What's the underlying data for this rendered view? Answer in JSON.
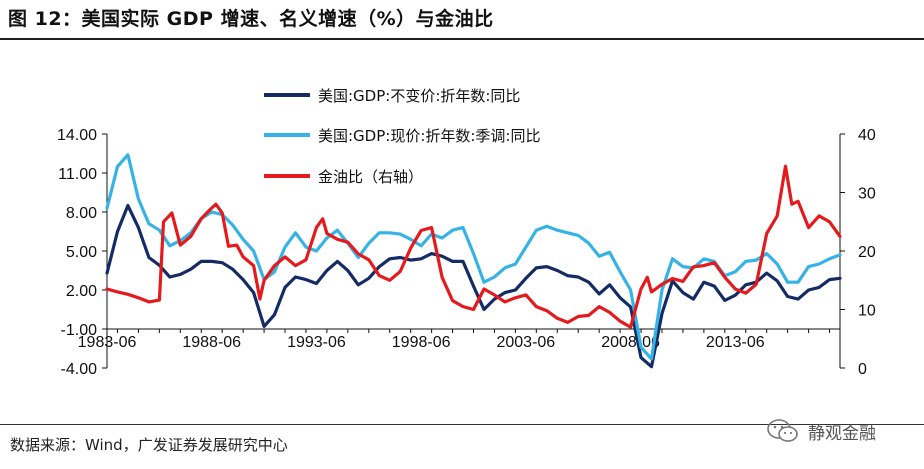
{
  "title": "图 12：美国实际 GDP 增速、名义增速（%）与金油比",
  "source": "数据来源：Wind，广发证券发展研究中心",
  "watermark": "静观金融",
  "chart_data": {
    "type": "line",
    "x_range": [
      "1983-06",
      "2018-06"
    ],
    "x_tick_labels": [
      "1983-06",
      "1988-06",
      "1993-06",
      "1998-06",
      "2003-06",
      "2008-06",
      "2013-06"
    ],
    "y_left": {
      "range": [
        -4,
        14
      ],
      "ticks": [
        "14.00",
        "11.00",
        "8.00",
        "5.00",
        "2.00",
        "-1.00",
        "-4.00"
      ]
    },
    "y_right": {
      "range": [
        0,
        40
      ],
      "ticks": [
        "40",
        "30",
        "20",
        "10",
        "0"
      ]
    },
    "legend_placement": "top-center",
    "grid": false,
    "series": [
      {
        "name": "美国:GDP:不变价:折年数:同比",
        "color": "#142b66",
        "axis": "left",
        "points": [
          [
            1983.5,
            3.3
          ],
          [
            1984.0,
            6.5
          ],
          [
            1984.5,
            8.5
          ],
          [
            1985.0,
            6.8
          ],
          [
            1985.5,
            4.5
          ],
          [
            1986.0,
            3.9
          ],
          [
            1986.5,
            3.0
          ],
          [
            1987.0,
            3.2
          ],
          [
            1987.5,
            3.6
          ],
          [
            1988.0,
            4.2
          ],
          [
            1988.5,
            4.2
          ],
          [
            1989.0,
            4.1
          ],
          [
            1989.5,
            3.6
          ],
          [
            1990.0,
            2.8
          ],
          [
            1990.5,
            1.8
          ],
          [
            1991.0,
            -0.8
          ],
          [
            1991.5,
            0.1
          ],
          [
            1992.0,
            2.2
          ],
          [
            1992.5,
            3.0
          ],
          [
            1993.0,
            2.8
          ],
          [
            1993.5,
            2.5
          ],
          [
            1994.0,
            3.5
          ],
          [
            1994.5,
            4.2
          ],
          [
            1995.0,
            3.5
          ],
          [
            1995.5,
            2.4
          ],
          [
            1996.0,
            2.9
          ],
          [
            1996.5,
            3.8
          ],
          [
            1997.0,
            4.4
          ],
          [
            1997.5,
            4.5
          ],
          [
            1998.0,
            4.3
          ],
          [
            1998.5,
            4.4
          ],
          [
            1999.0,
            4.8
          ],
          [
            1999.5,
            4.6
          ],
          [
            2000.0,
            4.2
          ],
          [
            2000.5,
            4.2
          ],
          [
            2001.0,
            2.3
          ],
          [
            2001.5,
            0.5
          ],
          [
            2002.0,
            1.3
          ],
          [
            2002.5,
            1.8
          ],
          [
            2003.0,
            2.0
          ],
          [
            2003.5,
            2.9
          ],
          [
            2004.0,
            3.7
          ],
          [
            2004.5,
            3.8
          ],
          [
            2005.0,
            3.5
          ],
          [
            2005.5,
            3.1
          ],
          [
            2006.0,
            3.0
          ],
          [
            2006.5,
            2.6
          ],
          [
            2007.0,
            1.7
          ],
          [
            2007.5,
            2.4
          ],
          [
            2008.0,
            1.4
          ],
          [
            2008.5,
            0.7
          ],
          [
            2009.0,
            -3.2
          ],
          [
            2009.5,
            -3.9
          ],
          [
            2010.0,
            0.2
          ],
          [
            2010.5,
            2.7
          ],
          [
            2011.0,
            1.8
          ],
          [
            2011.5,
            1.3
          ],
          [
            2012.0,
            2.6
          ],
          [
            2012.5,
            2.3
          ],
          [
            2013.0,
            1.2
          ],
          [
            2013.5,
            1.6
          ],
          [
            2014.0,
            2.4
          ],
          [
            2014.5,
            2.6
          ],
          [
            2015.0,
            3.3
          ],
          [
            2015.5,
            2.7
          ],
          [
            2016.0,
            1.5
          ],
          [
            2016.5,
            1.3
          ],
          [
            2017.0,
            2.0
          ],
          [
            2017.5,
            2.2
          ],
          [
            2018.0,
            2.8
          ],
          [
            2018.5,
            2.9
          ]
        ]
      },
      {
        "name": "美国:GDP:现价:折年数:季调:同比",
        "color": "#36b3e6",
        "axis": "left",
        "points": [
          [
            1983.5,
            8.3
          ],
          [
            1984.0,
            11.5
          ],
          [
            1984.5,
            12.4
          ],
          [
            1985.0,
            9.0
          ],
          [
            1985.5,
            7.1
          ],
          [
            1986.0,
            6.6
          ],
          [
            1986.5,
            5.4
          ],
          [
            1987.0,
            5.8
          ],
          [
            1987.5,
            6.4
          ],
          [
            1988.0,
            7.5
          ],
          [
            1988.5,
            8.0
          ],
          [
            1989.0,
            7.8
          ],
          [
            1989.5,
            7.0
          ],
          [
            1990.0,
            5.9
          ],
          [
            1990.5,
            5.0
          ],
          [
            1991.0,
            2.8
          ],
          [
            1991.5,
            3.4
          ],
          [
            1992.0,
            5.3
          ],
          [
            1992.5,
            6.4
          ],
          [
            1993.0,
            5.3
          ],
          [
            1993.5,
            5.0
          ],
          [
            1994.0,
            6.0
          ],
          [
            1994.5,
            6.6
          ],
          [
            1995.0,
            5.6
          ],
          [
            1995.5,
            4.5
          ],
          [
            1996.0,
            5.6
          ],
          [
            1996.5,
            6.4
          ],
          [
            1997.0,
            6.4
          ],
          [
            1997.5,
            6.3
          ],
          [
            1998.0,
            5.9
          ],
          [
            1998.5,
            5.4
          ],
          [
            1999.0,
            6.3
          ],
          [
            1999.5,
            6.0
          ],
          [
            2000.0,
            6.6
          ],
          [
            2000.5,
            6.8
          ],
          [
            2001.0,
            4.8
          ],
          [
            2001.5,
            2.6
          ],
          [
            2002.0,
            3.0
          ],
          [
            2002.5,
            3.7
          ],
          [
            2003.0,
            4.0
          ],
          [
            2003.5,
            5.3
          ],
          [
            2004.0,
            6.6
          ],
          [
            2004.5,
            6.9
          ],
          [
            2005.0,
            6.6
          ],
          [
            2005.5,
            6.4
          ],
          [
            2006.0,
            6.2
          ],
          [
            2006.5,
            5.6
          ],
          [
            2007.0,
            4.6
          ],
          [
            2007.5,
            4.9
          ],
          [
            2008.0,
            3.4
          ],
          [
            2008.5,
            2.0
          ],
          [
            2009.0,
            -2.4
          ],
          [
            2009.5,
            -3.3
          ],
          [
            2010.0,
            2.0
          ],
          [
            2010.5,
            4.4
          ],
          [
            2011.0,
            3.8
          ],
          [
            2011.5,
            3.7
          ],
          [
            2012.0,
            4.4
          ],
          [
            2012.5,
            4.2
          ],
          [
            2013.0,
            3.1
          ],
          [
            2013.5,
            3.4
          ],
          [
            2014.0,
            4.2
          ],
          [
            2014.5,
            4.3
          ],
          [
            2015.0,
            4.8
          ],
          [
            2015.5,
            4.0
          ],
          [
            2016.0,
            2.6
          ],
          [
            2016.5,
            2.6
          ],
          [
            2017.0,
            3.8
          ],
          [
            2017.5,
            4.0
          ],
          [
            2018.0,
            4.4
          ],
          [
            2018.5,
            4.7
          ]
        ]
      },
      {
        "name": "金油比（右轴）",
        "color": "#e41a1c",
        "axis": "right",
        "points": [
          [
            1983.5,
            13.5
          ],
          [
            1984.0,
            13.0
          ],
          [
            1984.5,
            12.6
          ],
          [
            1985.0,
            12.0
          ],
          [
            1985.5,
            11.3
          ],
          [
            1986.0,
            11.6
          ],
          [
            1986.2,
            25.0
          ],
          [
            1986.6,
            26.5
          ],
          [
            1987.0,
            21.0
          ],
          [
            1987.5,
            22.5
          ],
          [
            1988.0,
            25.5
          ],
          [
            1988.4,
            27.0
          ],
          [
            1988.7,
            28.0
          ],
          [
            1989.0,
            26.5
          ],
          [
            1989.3,
            20.8
          ],
          [
            1989.7,
            21.0
          ],
          [
            1990.0,
            19.0
          ],
          [
            1990.5,
            17.5
          ],
          [
            1990.8,
            11.8
          ],
          [
            1991.0,
            15.0
          ],
          [
            1991.5,
            17.5
          ],
          [
            1992.0,
            19.0
          ],
          [
            1992.5,
            17.5
          ],
          [
            1993.0,
            18.5
          ],
          [
            1993.5,
            24.0
          ],
          [
            1993.8,
            25.5
          ],
          [
            1994.0,
            23.0
          ],
          [
            1994.5,
            22.0
          ],
          [
            1995.0,
            21.5
          ],
          [
            1995.5,
            19.5
          ],
          [
            1996.0,
            18.5
          ],
          [
            1996.5,
            15.8
          ],
          [
            1997.0,
            15.0
          ],
          [
            1997.5,
            16.5
          ],
          [
            1998.0,
            20.5
          ],
          [
            1998.5,
            23.5
          ],
          [
            1999.0,
            24.0
          ],
          [
            1999.5,
            15.5
          ],
          [
            2000.0,
            11.5
          ],
          [
            2000.5,
            10.5
          ],
          [
            2001.0,
            10.0
          ],
          [
            2001.5,
            13.5
          ],
          [
            2002.0,
            12.5
          ],
          [
            2002.5,
            11.3
          ],
          [
            2003.0,
            12.0
          ],
          [
            2003.5,
            12.5
          ],
          [
            2004.0,
            10.5
          ],
          [
            2004.5,
            9.8
          ],
          [
            2005.0,
            8.5
          ],
          [
            2005.5,
            7.8
          ],
          [
            2006.0,
            8.8
          ],
          [
            2006.5,
            9.0
          ],
          [
            2007.0,
            10.5
          ],
          [
            2007.5,
            9.5
          ],
          [
            2008.0,
            8.0
          ],
          [
            2008.5,
            7.0
          ],
          [
            2009.0,
            13.5
          ],
          [
            2009.3,
            15.5
          ],
          [
            2009.5,
            13.0
          ],
          [
            2010.0,
            14.3
          ],
          [
            2010.5,
            15.3
          ],
          [
            2011.0,
            14.8
          ],
          [
            2011.5,
            17.3
          ],
          [
            2012.0,
            17.5
          ],
          [
            2012.5,
            18.0
          ],
          [
            2013.0,
            15.5
          ],
          [
            2013.5,
            13.5
          ],
          [
            2014.0,
            12.8
          ],
          [
            2014.5,
            14.3
          ],
          [
            2015.0,
            23.0
          ],
          [
            2015.5,
            26.0
          ],
          [
            2015.9,
            34.5
          ],
          [
            2016.2,
            28.0
          ],
          [
            2016.5,
            28.5
          ],
          [
            2017.0,
            24.0
          ],
          [
            2017.5,
            26.0
          ],
          [
            2018.0,
            25.0
          ],
          [
            2018.5,
            22.5
          ]
        ]
      }
    ]
  }
}
